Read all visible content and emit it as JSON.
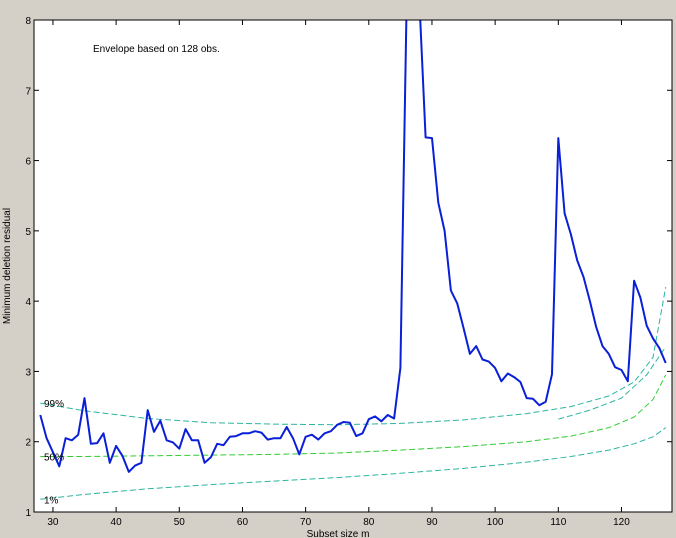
{
  "chart_data": {
    "type": "line",
    "title": "",
    "annotation": "Envelope based on 128 obs.",
    "xlabel": "Subset size m",
    "ylabel": "Minimum deletion residual",
    "xlim": [
      27,
      128
    ],
    "ylim": [
      1,
      8
    ],
    "xticks": [
      30,
      40,
      50,
      60,
      70,
      80,
      90,
      100,
      110,
      120
    ],
    "yticks": [
      1,
      2,
      3,
      4,
      5,
      6,
      7,
      8
    ],
    "grid": false,
    "colors": {
      "series": "#0a1fd8",
      "envelope_outer": "#2bb5a0",
      "envelope_mid": "#33cc33",
      "background": "#ffffff"
    },
    "envelope_labels": [
      "99%",
      "50%",
      "1%"
    ],
    "envelopes": [
      {
        "name": "99%",
        "x": [
          28,
          35,
          45,
          55,
          65,
          75,
          85,
          95,
          105,
          112,
          118,
          122,
          125,
          127
        ],
        "y": [
          2.55,
          2.44,
          2.33,
          2.27,
          2.25,
          2.24,
          2.26,
          2.31,
          2.4,
          2.5,
          2.65,
          2.85,
          3.2,
          4.2
        ]
      },
      {
        "name": "99% inner",
        "x": [
          110,
          115,
          120,
          124,
          127
        ],
        "y": [
          2.32,
          2.45,
          2.62,
          2.95,
          3.35
        ]
      },
      {
        "name": "50%",
        "x": [
          28,
          35,
          45,
          55,
          65,
          75,
          85,
          95,
          105,
          112,
          118,
          122,
          125,
          127
        ],
        "y": [
          1.79,
          1.79,
          1.8,
          1.81,
          1.82,
          1.84,
          1.88,
          1.93,
          2.0,
          2.08,
          2.2,
          2.35,
          2.6,
          2.95
        ]
      },
      {
        "name": "1%",
        "x": [
          28,
          35,
          45,
          55,
          65,
          75,
          85,
          95,
          105,
          112,
          118,
          122,
          125,
          127
        ],
        "y": [
          1.18,
          1.25,
          1.33,
          1.39,
          1.44,
          1.49,
          1.55,
          1.62,
          1.71,
          1.79,
          1.88,
          1.97,
          2.07,
          2.2
        ]
      }
    ],
    "series": [
      {
        "x": [
          28,
          29,
          30,
          31,
          32,
          33,
          34,
          35,
          36,
          37,
          38,
          39,
          40,
          41,
          42,
          43,
          44,
          45,
          46,
          47,
          48,
          49,
          50,
          51,
          52,
          53,
          54,
          55,
          56,
          57,
          58,
          59,
          60,
          61,
          62,
          63,
          64,
          65,
          66,
          67,
          68,
          69,
          70,
          71,
          72,
          73,
          74,
          75,
          76,
          77,
          78,
          79,
          80,
          81,
          82,
          83,
          84,
          85,
          86,
          87,
          88,
          89,
          90,
          91,
          92,
          93,
          94,
          95,
          96,
          97,
          98,
          99,
          100,
          101,
          102,
          103,
          104,
          105,
          106,
          107,
          108,
          109,
          110,
          111,
          112,
          113,
          114,
          115,
          116,
          117,
          118,
          119,
          120,
          121,
          122,
          123,
          124,
          125,
          126,
          127
        ],
        "y": [
          2.38,
          2.05,
          1.85,
          1.65,
          2.05,
          2.02,
          2.1,
          2.62,
          1.97,
          1.98,
          2.12,
          1.7,
          1.94,
          1.8,
          1.57,
          1.66,
          1.7,
          2.45,
          2.14,
          2.3,
          2.02,
          1.99,
          1.9,
          2.18,
          2.02,
          2.02,
          1.7,
          1.78,
          1.97,
          1.95,
          2.07,
          2.08,
          2.12,
          2.12,
          2.15,
          2.13,
          2.03,
          2.05,
          2.05,
          2.21,
          2.05,
          1.82,
          2.07,
          2.1,
          2.03,
          2.12,
          2.15,
          2.24,
          2.28,
          2.27,
          2.08,
          2.12,
          2.32,
          2.36,
          2.29,
          2.38,
          2.33,
          3.05,
          8.3,
          9.5,
          8.3,
          6.33,
          6.32,
          5.4,
          5.0,
          4.15,
          3.97,
          3.62,
          3.25,
          3.36,
          3.17,
          3.14,
          3.05,
          2.86,
          2.97,
          2.92,
          2.85,
          2.62,
          2.61,
          2.52,
          2.57,
          2.96,
          6.32,
          5.25,
          4.95,
          4.58,
          4.34,
          4.0,
          3.63,
          3.36,
          3.25,
          3.06,
          3.02,
          2.86,
          4.29,
          4.05,
          3.65,
          3.47,
          3.33,
          3.12
        ]
      }
    ]
  }
}
